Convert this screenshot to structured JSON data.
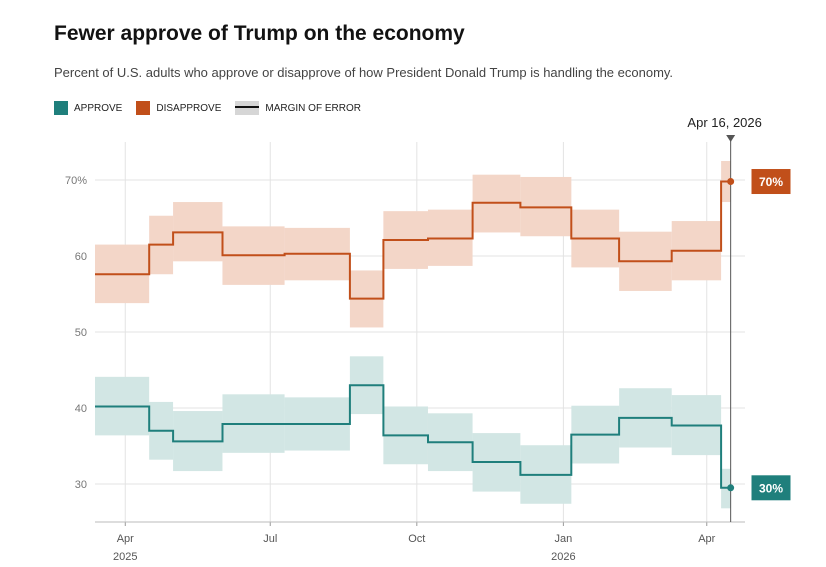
{
  "chart_data": {
    "type": "line",
    "title": "Fewer approve of Trump on the economy",
    "subtitle": "Percent of U.S. adults who approve or disapprove of how President Donald Trump is handling the economy.",
    "legend": [
      {
        "label": "APPROVE",
        "color": "#1f7f7c"
      },
      {
        "label": "DISAPPROVE",
        "color": "#c14f1a"
      },
      {
        "label": "MARGIN OF ERROR",
        "color": "#111111"
      }
    ],
    "ylim": [
      25,
      75
    ],
    "y_ticks": [
      {
        "value": 70,
        "label": "70%"
      },
      {
        "value": 60,
        "label": "60"
      },
      {
        "value": 50,
        "label": "50"
      },
      {
        "value": 40,
        "label": "40"
      },
      {
        "value": 30,
        "label": "30"
      }
    ],
    "x_domain": [
      "2025-03-13",
      "2026-04-25"
    ],
    "x_ticks": [
      {
        "date": "2025-04-01",
        "label": "Apr",
        "year": "2025"
      },
      {
        "date": "2025-07-01",
        "label": "Jul",
        "year": ""
      },
      {
        "date": "2025-10-01",
        "label": "Oct",
        "year": ""
      },
      {
        "date": "2026-01-01",
        "label": "Jan",
        "year": "2026"
      },
      {
        "date": "2026-04-01",
        "label": "Apr",
        "year": ""
      }
    ],
    "marker": {
      "date": "2026-04-16",
      "label": "Apr 16, 2026"
    },
    "series": [
      {
        "name": "Disapprove",
        "color": "#c14f1a",
        "band_color": "#f3d6c8",
        "final_label": "70%",
        "segments": [
          {
            "start": "2025-03-13",
            "end": "2025-04-16",
            "value": 57.6,
            "low": 53.8,
            "high": 61.5
          },
          {
            "start": "2025-04-16",
            "end": "2025-05-01",
            "value": 61.5,
            "low": 57.6,
            "high": 65.3
          },
          {
            "start": "2025-05-01",
            "end": "2025-06-01",
            "value": 63.1,
            "low": 59.3,
            "high": 67.1
          },
          {
            "start": "2025-06-01",
            "end": "2025-07-10",
            "value": 60.1,
            "low": 56.2,
            "high": 63.9
          },
          {
            "start": "2025-07-10",
            "end": "2025-08-20",
            "value": 60.3,
            "low": 56.8,
            "high": 63.7
          },
          {
            "start": "2025-08-20",
            "end": "2025-09-10",
            "value": 54.4,
            "low": 50.6,
            "high": 58.1
          },
          {
            "start": "2025-09-10",
            "end": "2025-10-08",
            "value": 62.1,
            "low": 58.3,
            "high": 65.9
          },
          {
            "start": "2025-10-08",
            "end": "2025-11-05",
            "value": 62.3,
            "low": 58.7,
            "high": 66.1
          },
          {
            "start": "2025-11-05",
            "end": "2025-12-05",
            "value": 67.0,
            "low": 63.1,
            "high": 70.7
          },
          {
            "start": "2025-12-05",
            "end": "2026-01-06",
            "value": 66.4,
            "low": 62.6,
            "high": 70.4
          },
          {
            "start": "2026-01-06",
            "end": "2026-02-05",
            "value": 62.3,
            "low": 58.5,
            "high": 66.1
          },
          {
            "start": "2026-02-05",
            "end": "2026-03-10",
            "value": 59.3,
            "low": 55.4,
            "high": 63.2
          },
          {
            "start": "2026-03-10",
            "end": "2026-04-10",
            "value": 60.7,
            "low": 56.8,
            "high": 64.6
          },
          {
            "start": "2026-04-10",
            "end": "2026-04-16",
            "value": 69.8,
            "low": 67.1,
            "high": 72.5
          }
        ]
      },
      {
        "name": "Approve",
        "color": "#1f7f7c",
        "band_color": "#d2e6e4",
        "final_label": "30%",
        "segments": [
          {
            "start": "2025-03-13",
            "end": "2025-04-16",
            "value": 40.2,
            "low": 36.4,
            "high": 44.1
          },
          {
            "start": "2025-04-16",
            "end": "2025-05-01",
            "value": 37.0,
            "low": 33.2,
            "high": 40.8
          },
          {
            "start": "2025-05-01",
            "end": "2025-06-01",
            "value": 35.6,
            "low": 31.7,
            "high": 39.6
          },
          {
            "start": "2025-06-01",
            "end": "2025-07-10",
            "value": 37.9,
            "low": 34.1,
            "high": 41.8
          },
          {
            "start": "2025-07-10",
            "end": "2025-08-20",
            "value": 37.9,
            "low": 34.4,
            "high": 41.4
          },
          {
            "start": "2025-08-20",
            "end": "2025-09-10",
            "value": 43.0,
            "low": 39.2,
            "high": 46.8
          },
          {
            "start": "2025-09-10",
            "end": "2025-10-08",
            "value": 36.4,
            "low": 32.6,
            "high": 40.2
          },
          {
            "start": "2025-10-08",
            "end": "2025-11-05",
            "value": 35.5,
            "low": 31.7,
            "high": 39.3
          },
          {
            "start": "2025-11-05",
            "end": "2025-12-05",
            "value": 32.9,
            "low": 29.0,
            "high": 36.7
          },
          {
            "start": "2025-12-05",
            "end": "2026-01-06",
            "value": 31.2,
            "low": 27.4,
            "high": 35.1
          },
          {
            "start": "2026-01-06",
            "end": "2026-02-05",
            "value": 36.5,
            "low": 32.7,
            "high": 40.3
          },
          {
            "start": "2026-02-05",
            "end": "2026-03-10",
            "value": 38.7,
            "low": 34.8,
            "high": 42.6
          },
          {
            "start": "2026-03-10",
            "end": "2026-04-10",
            "value": 37.7,
            "low": 33.8,
            "high": 41.7
          },
          {
            "start": "2026-04-10",
            "end": "2026-04-16",
            "value": 29.5,
            "low": 26.8,
            "high": 32.0
          }
        ]
      }
    ]
  }
}
